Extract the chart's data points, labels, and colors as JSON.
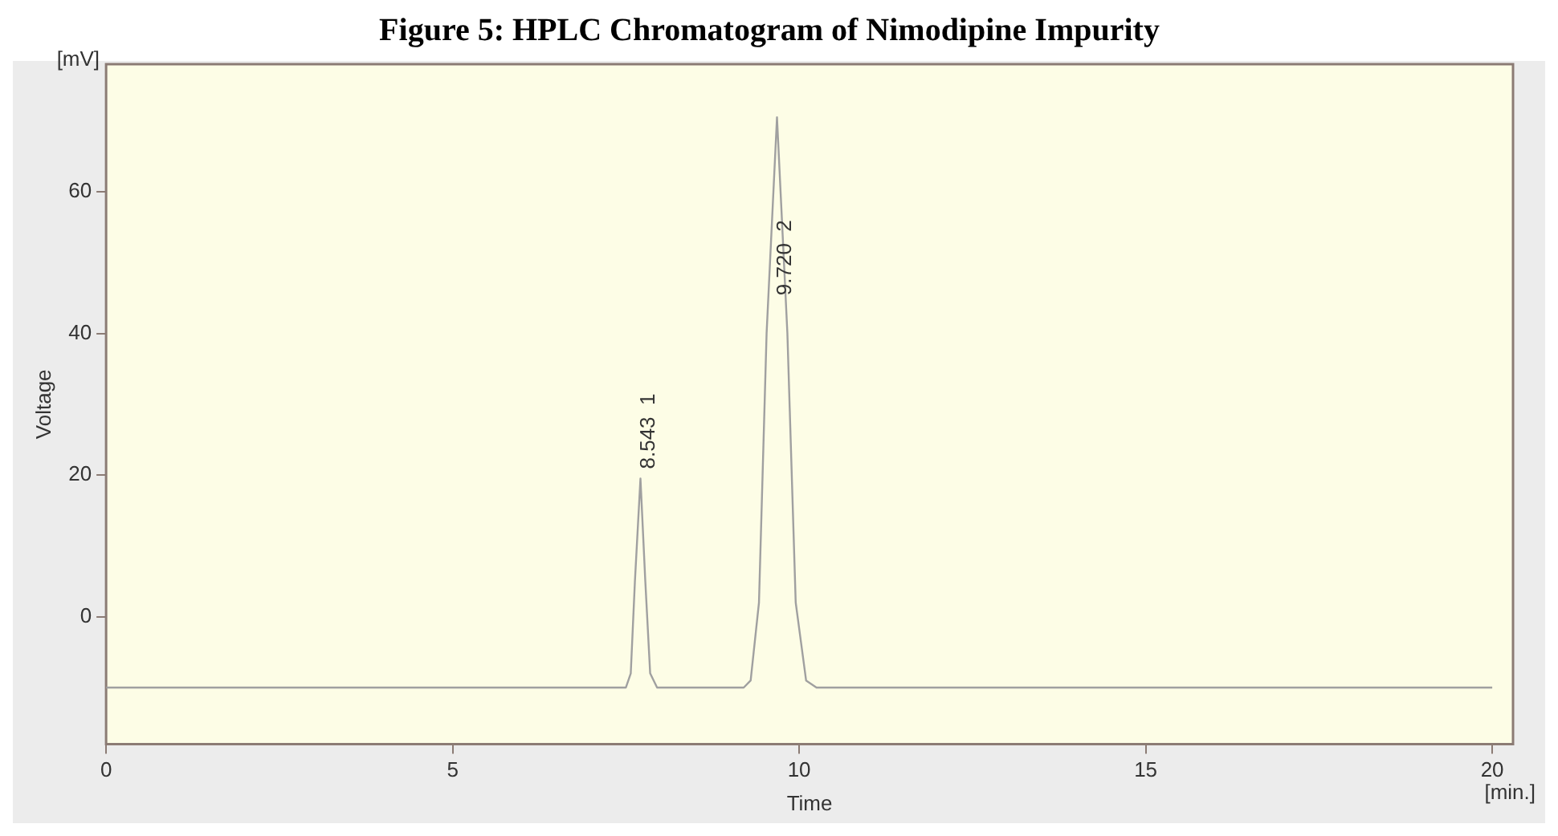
{
  "chart_data": {
    "type": "line",
    "title": "Figure 5: HPLC Chromatogram of Nimodipine Impurity",
    "xlabel": "Time",
    "ylabel": "Voltage",
    "annotations": [
      "[mV]",
      "[min.]",
      {
        "text": "8.543  1",
        "x": 7.71,
        "y": 19.5
      },
      {
        "text": "9.720  2",
        "x": 9.68,
        "y": 44
      }
    ],
    "x": [
      0,
      7.5,
      7.57,
      7.63,
      7.71,
      7.78,
      7.85,
      7.95,
      9.2,
      9.3,
      9.42,
      9.53,
      9.68,
      9.83,
      9.95,
      10.1,
      10.25,
      20
    ],
    "series": [
      {
        "color": "#a0a0a0",
        "values": [
          -10,
          -10,
          -8,
          5,
          19.5,
          5,
          -8,
          -10,
          -10,
          -9,
          2,
          40,
          70.5,
          40,
          2,
          -9,
          -10,
          -10
        ]
      }
    ],
    "xlim": [
      0,
      20.3
    ],
    "ylim": [
      -18,
      78
    ],
    "xticks": [
      0,
      5,
      10,
      15,
      20
    ],
    "yticks": [
      0,
      20,
      40,
      60
    ],
    "grid": false,
    "legend": false,
    "marker": "none",
    "line_style": "solid"
  }
}
